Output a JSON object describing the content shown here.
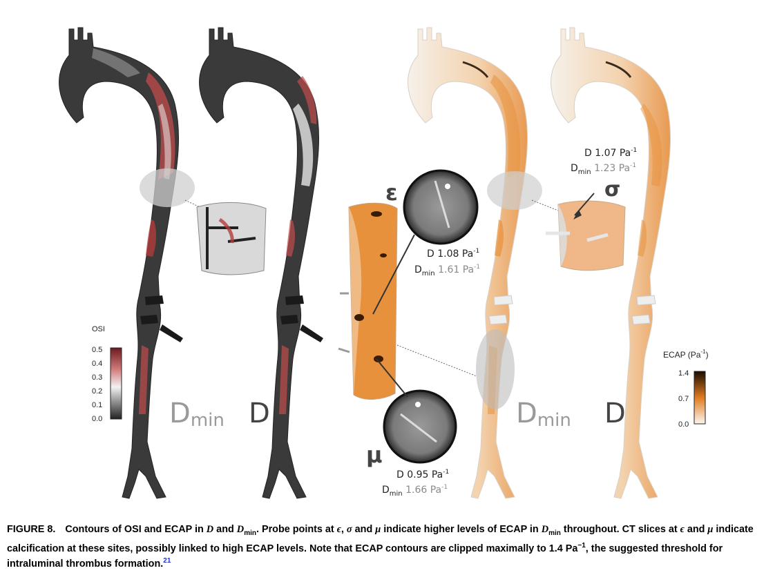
{
  "figure": {
    "labels": {
      "dmin_left": "D",
      "dmin_left_sub": "min",
      "d_left": "D",
      "dmin_right": "D",
      "dmin_right_sub": "min",
      "d_right": "D"
    },
    "probes": {
      "epsilon": {
        "symbol": "ε",
        "d_line": "D 1.08 Pa",
        "d_unit_sup": "-1",
        "dmin_prefix": "D",
        "dmin_sub": "min",
        "dmin_value": "1.61 Pa",
        "dmin_sup": "-1"
      },
      "sigma": {
        "symbol": "σ",
        "d_line": "D 1.07 Pa",
        "d_unit_sup": "-1",
        "dmin_prefix": "D",
        "dmin_sub": "min",
        "dmin_value": "1.23 Pa",
        "dmin_sup": "-1"
      },
      "mu": {
        "symbol": "μ",
        "d_line": "D 0.95 Pa",
        "d_unit_sup": "-1",
        "dmin_prefix": "D",
        "dmin_sub": "min",
        "dmin_value": "1.66 Pa",
        "dmin_sup": "-1"
      }
    },
    "osi_bar": {
      "title": "OSI",
      "ticks": [
        "0.5",
        "0.4",
        "0.3",
        "0.2",
        "0.1",
        "0.0"
      ],
      "colors": {
        "top": "#6b1a20",
        "mid": "#f2f2f2",
        "bottom": "#222222"
      }
    },
    "ecap_bar": {
      "title": "ECAP (Pa",
      "title_sup": "-1",
      "title_close": ")",
      "ticks": [
        "1.4",
        "0.7",
        "0.0"
      ],
      "colors": {
        "top": "#1a0d00",
        "mid": "#e07b20",
        "bottom": "#fdf6ee"
      }
    },
    "colors": {
      "osi_dark": "#3a3a3a",
      "osi_red": "#c24c4c",
      "ecap_orange": "#e8913c",
      "ecap_light": "#f3efea",
      "label_gray": "#9a9a9a",
      "label_dark": "#444444"
    }
  },
  "caption": {
    "label": "FIGURE 8.",
    "t1": "Contours of OSI and ECAP in ",
    "d1": "D",
    "t2": " and ",
    "d2": "D",
    "d2_sub": "min",
    "t3": ". Probe points at ",
    "eps": "ϵ",
    "t4": ", ",
    "sig": "σ",
    "t5": " and ",
    "mu": "μ",
    "t6": " indicate higher levels of ECAP in ",
    "d3": "D",
    "d3_sub": "min",
    "t7": " throughout. CT slices at ",
    "eps2": "ϵ",
    "t8": " and ",
    "mu2": "μ",
    "t9": " indicate calcification at these sites, possibly linked to high ECAP levels. Note that ECAP contours are clipped maximally to 1.4 Pa",
    "sup1": "−1",
    "t10": ", the suggested threshold for intraluminal thrombus formation.",
    "ref": "21"
  }
}
